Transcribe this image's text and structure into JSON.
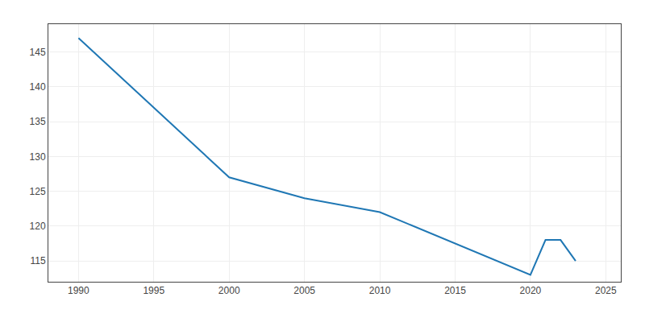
{
  "chart_data": {
    "type": "line",
    "x": [
      1990,
      2000,
      2005,
      2010,
      2020,
      2021,
      2022,
      2023
    ],
    "values": [
      147,
      127,
      124,
      122,
      113,
      118,
      118,
      115
    ],
    "xlim": [
      1988,
      2026
    ],
    "ylim": [
      112,
      149
    ],
    "xticks": [
      1990,
      1995,
      2000,
      2005,
      2010,
      2015,
      2020,
      2025
    ],
    "yticks": [
      115,
      120,
      125,
      130,
      135,
      140,
      145
    ],
    "grid": true
  }
}
